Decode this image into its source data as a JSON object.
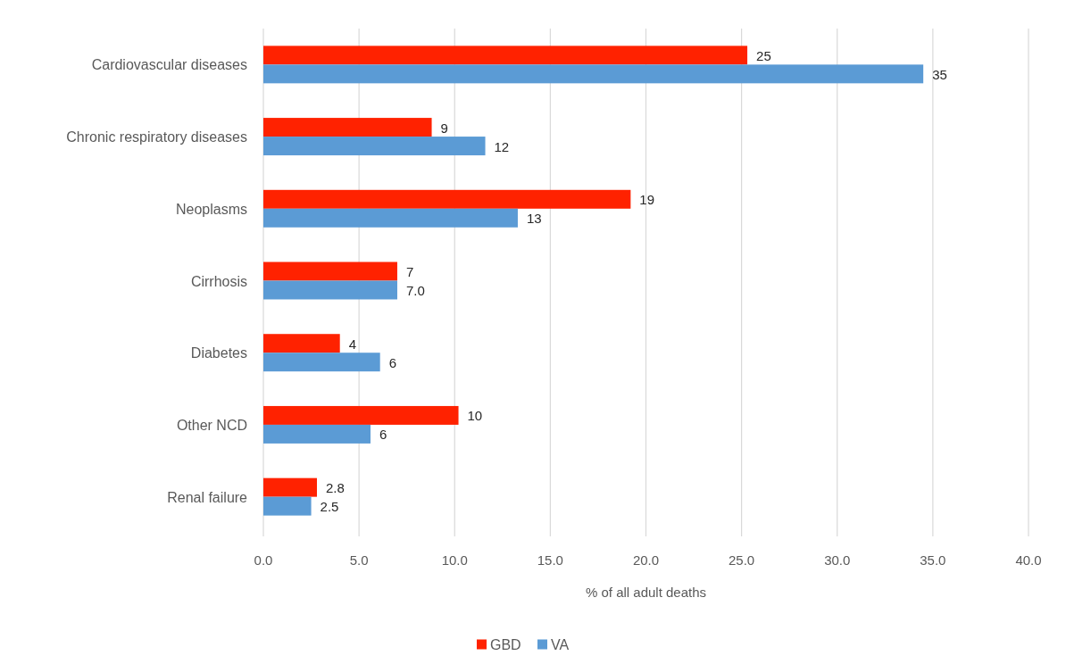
{
  "chart_data": {
    "type": "bar",
    "orientation": "horizontal",
    "categories": [
      "Cardiovascular diseases",
      "Chronic respiratory diseases",
      "Neoplasms",
      "Cirrhosis",
      "Diabetes",
      "Other NCD",
      "Renal failure"
    ],
    "series": [
      {
        "name": "GBD",
        "color": "#ff2200",
        "values": [
          25.3,
          8.8,
          19.2,
          7.0,
          4.0,
          10.2,
          2.8
        ],
        "value_labels": [
          "25",
          "9",
          "19",
          "7",
          "4",
          "10",
          "2.8"
        ]
      },
      {
        "name": "VA",
        "color": "#5b9bd5",
        "values": [
          34.5,
          11.6,
          13.3,
          7.0,
          6.1,
          5.6,
          2.5
        ],
        "value_labels": [
          "35",
          "12",
          "13",
          "7.0",
          "6",
          "6",
          "2.5"
        ]
      }
    ],
    "xlabel": "% of all adult deaths",
    "xlim": [
      0,
      40
    ],
    "xticks": [
      {
        "value": 0,
        "label": "0.0"
      },
      {
        "value": 5,
        "label": "5.0"
      },
      {
        "value": 10,
        "label": "10.0"
      },
      {
        "value": 15,
        "label": "15.0"
      },
      {
        "value": 20,
        "label": "20.0"
      },
      {
        "value": 25,
        "label": "25.0"
      },
      {
        "value": 30,
        "label": "30.0"
      },
      {
        "value": 35,
        "label": "35.0"
      },
      {
        "value": 40,
        "label": "40.0"
      }
    ],
    "grid": "x",
    "legend": "bottom"
  }
}
